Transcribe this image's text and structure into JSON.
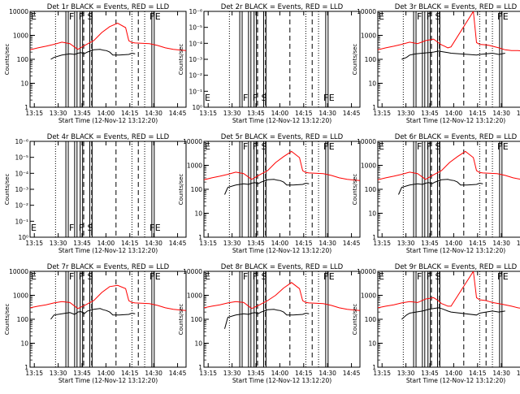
{
  "colors": {
    "events": "#000000",
    "lld": "#ff0000",
    "background": "#ffffff"
  },
  "xaxis": {
    "label": "Start Time (12-Nov-12 13:12:20)",
    "ticks": [
      "13:15",
      "13:30",
      "13:45",
      "14:00",
      "14:15",
      "14:30",
      "14:45"
    ],
    "minutes": [
      2.67,
      17.67,
      32.67,
      47.67,
      62.67,
      77.67,
      92.67
    ],
    "range_minutes": [
      0,
      98
    ]
  },
  "yaxis": {
    "label": "Counts/sec",
    "log_ticks": [
      "1",
      "10",
      "100",
      "1000",
      "10000"
    ],
    "empty_ticks": [
      "10⁻⁶",
      "10⁻⁵",
      "10⁻⁴",
      "10⁻³",
      "10⁻²",
      "10⁻¹",
      "10⁰"
    ]
  },
  "flags": {
    "events": [
      "F",
      "F",
      "S",
      "F",
      "E"
    ],
    "first": "E"
  },
  "chart_data": [
    {
      "type": "line",
      "title": "Det 1r BLACK = Events, RED = LLD",
      "empty": false,
      "xlabel": "Start Time (12-Nov-12 13:12:20)",
      "ylabel": "Counts/sec",
      "ylim": [
        1,
        10000
      ],
      "y_scale": "log",
      "series": [
        {
          "name": "Events",
          "color": "#000000",
          "x": [
            13,
            15,
            20,
            25,
            28,
            30,
            32,
            34,
            36,
            40,
            44,
            46,
            48,
            50,
            52,
            56,
            62,
            64,
            66
          ],
          "y": [
            100,
            120,
            150,
            170,
            160,
            180,
            190,
            170,
            200,
            250,
            260,
            240,
            230,
            200,
            150,
            150,
            160,
            180,
            170
          ]
        },
        {
          "name": "LLD",
          "color": "#ff0000",
          "x": [
            0,
            5,
            10,
            15,
            20,
            25,
            30,
            35,
            40,
            45,
            50,
            55,
            60,
            62,
            64,
            66,
            70,
            75,
            80,
            85,
            90,
            95,
            98
          ],
          "y": [
            250,
            300,
            350,
            420,
            520,
            450,
            260,
            400,
            600,
            1300,
            2300,
            3200,
            2100,
            600,
            500,
            480,
            470,
            450,
            380,
            300,
            260,
            240,
            230
          ]
        }
      ]
    },
    {
      "type": "line",
      "title": "Det 2r BLACK = Events, RED = LLD",
      "empty": true,
      "xlabel": "Start Time (12-Nov-12 13:12:20)",
      "ylabel": "Counts/sec",
      "series": []
    },
    {
      "type": "line",
      "title": "Det 3r BLACK = Events, RED = LLD",
      "empty": false,
      "xlabel": "Start Time (12-Nov-12 13:12:20)",
      "ylabel": "Counts/sec",
      "ylim": [
        1,
        10000
      ],
      "y_scale": "log",
      "series": [
        {
          "name": "Events",
          "color": "#000000",
          "x": [
            15,
            18,
            20,
            24,
            28,
            32,
            35,
            38,
            40,
            42,
            44,
            46,
            62,
            64,
            68,
            72,
            76,
            78,
            80
          ],
          "y": [
            100,
            120,
            150,
            170,
            180,
            190,
            200,
            220,
            210,
            200,
            190,
            180,
            150,
            160,
            170,
            180,
            160,
            170,
            180
          ]
        },
        {
          "name": "LLD",
          "color": "#ff0000",
          "x": [
            0,
            5,
            10,
            15,
            20,
            25,
            30,
            35,
            38,
            40,
            42,
            44,
            46,
            60,
            62,
            64,
            68,
            70,
            72,
            76,
            80,
            84,
            88,
            92,
            96,
            98
          ],
          "y": [
            250,
            300,
            350,
            420,
            520,
            450,
            600,
            700,
            500,
            400,
            350,
            300,
            330,
            10000,
            500,
            420,
            400,
            380,
            350,
            300,
            250,
            230,
            230,
            220,
            220,
            220
          ]
        }
      ]
    },
    {
      "type": "line",
      "title": "Det 4r BLACK = Events, RED = LLD",
      "empty": true,
      "xlabel": "Start Time (12-Nov-12 13:12:20)",
      "ylabel": "Counts/sec",
      "series": []
    },
    {
      "type": "line",
      "title": "Det 5r BLACK = Events, RED = LLD",
      "empty": false,
      "xlabel": "Start Time (12-Nov-12 13:12:20)",
      "ylabel": "Counts/sec",
      "ylim": [
        1,
        10000
      ],
      "y_scale": "log",
      "series": [
        {
          "name": "Events",
          "color": "#000000",
          "x": [
            13,
            15,
            20,
            25,
            28,
            30,
            32,
            34,
            36,
            40,
            44,
            46,
            48,
            50,
            52,
            56,
            62,
            64,
            66
          ],
          "y": [
            60,
            120,
            150,
            170,
            160,
            180,
            190,
            170,
            200,
            250,
            260,
            240,
            230,
            200,
            150,
            150,
            160,
            180,
            170
          ]
        },
        {
          "name": "LLD",
          "color": "#ff0000",
          "x": [
            0,
            5,
            10,
            15,
            20,
            25,
            30,
            35,
            40,
            45,
            50,
            55,
            60,
            62,
            64,
            66,
            70,
            75,
            80,
            85,
            90,
            95,
            98
          ],
          "y": [
            250,
            300,
            350,
            420,
            520,
            450,
            260,
            400,
            600,
            1300,
            2300,
            3800,
            2100,
            600,
            500,
            480,
            470,
            450,
            380,
            300,
            260,
            240,
            230
          ]
        }
      ]
    },
    {
      "type": "line",
      "title": "Det 6r BLACK = Events, RED = LLD",
      "empty": false,
      "xlabel": "Start Time (12-Nov-12 13:12:20)",
      "ylabel": "Counts/sec",
      "ylim": [
        1,
        10000
      ],
      "y_scale": "log",
      "series": [
        {
          "name": "Events",
          "color": "#000000",
          "x": [
            13,
            15,
            20,
            25,
            28,
            30,
            32,
            34,
            36,
            40,
            44,
            46,
            48,
            50,
            52,
            56,
            62,
            64,
            66
          ],
          "y": [
            60,
            120,
            150,
            170,
            160,
            180,
            190,
            170,
            200,
            250,
            260,
            240,
            230,
            200,
            150,
            150,
            160,
            180,
            170
          ]
        },
        {
          "name": "LLD",
          "color": "#ff0000",
          "x": [
            0,
            5,
            10,
            15,
            20,
            25,
            30,
            35,
            40,
            45,
            50,
            55,
            60,
            62,
            64,
            66,
            70,
            75,
            80,
            85,
            90,
            95,
            98
          ],
          "y": [
            250,
            300,
            350,
            420,
            520,
            450,
            260,
            400,
            600,
            1300,
            2300,
            3800,
            2100,
            600,
            500,
            480,
            470,
            450,
            380,
            300,
            260,
            240,
            230
          ]
        }
      ]
    },
    {
      "type": "line",
      "title": "Det 7r BLACK = Events, RED = LLD",
      "empty": false,
      "xlabel": "Start Time (12-Nov-12 13:12:20)",
      "ylabel": "Counts/sec",
      "ylim": [
        1,
        10000
      ],
      "y_scale": "log",
      "series": [
        {
          "name": "Events",
          "color": "#000000",
          "x": [
            13,
            15,
            20,
            25,
            28,
            30,
            32,
            34,
            36,
            40,
            44,
            46,
            48,
            50,
            52,
            56,
            62,
            64,
            66
          ],
          "y": [
            100,
            150,
            170,
            190,
            160,
            200,
            210,
            170,
            220,
            260,
            280,
            250,
            230,
            200,
            150,
            150,
            160,
            180,
            170
          ]
        },
        {
          "name": "LLD",
          "color": "#ff0000",
          "x": [
            0,
            5,
            10,
            15,
            20,
            25,
            30,
            35,
            40,
            45,
            50,
            55,
            60,
            62,
            64,
            66,
            70,
            75,
            80,
            85,
            90,
            95,
            98
          ],
          "y": [
            300,
            350,
            400,
            480,
            550,
            500,
            280,
            400,
            600,
            1300,
            2300,
            2600,
            1900,
            600,
            500,
            480,
            470,
            450,
            380,
            300,
            260,
            240,
            230
          ]
        }
      ]
    },
    {
      "type": "line",
      "title": "Det 8r BLACK = Events, RED = LLD",
      "empty": false,
      "xlabel": "Start Time (12-Nov-12 13:12:20)",
      "ylabel": "Counts/sec",
      "ylim": [
        1,
        10000
      ],
      "y_scale": "log",
      "series": [
        {
          "name": "Events",
          "color": "#000000",
          "x": [
            13,
            15,
            20,
            25,
            28,
            30,
            32,
            34,
            36,
            40,
            44,
            46,
            48,
            50,
            52,
            56,
            62,
            64,
            66
          ],
          "y": [
            40,
            120,
            150,
            170,
            160,
            180,
            190,
            170,
            200,
            250,
            260,
            240,
            230,
            200,
            150,
            150,
            160,
            180,
            170
          ]
        },
        {
          "name": "LLD",
          "color": "#ff0000",
          "x": [
            0,
            5,
            10,
            15,
            20,
            25,
            30,
            35,
            40,
            45,
            50,
            55,
            60,
            62,
            64,
            66,
            70,
            75,
            80,
            85,
            90,
            95,
            98
          ],
          "y": [
            300,
            350,
            400,
            480,
            550,
            500,
            280,
            400,
            600,
            1000,
            2000,
            3400,
            1900,
            600,
            500,
            480,
            470,
            450,
            380,
            300,
            260,
            240,
            230
          ]
        }
      ]
    },
    {
      "type": "line",
      "title": "Det 9r BLACK = Events, RED = LLD",
      "empty": false,
      "xlabel": "Start Time (12-Nov-12 13:12:20)",
      "ylabel": "Counts/sec",
      "ylim": [
        1,
        10000
      ],
      "y_scale": "log",
      "series": [
        {
          "name": "Events",
          "color": "#000000",
          "x": [
            15,
            18,
            20,
            24,
            28,
            32,
            35,
            38,
            40,
            42,
            44,
            46,
            62,
            64,
            68,
            72,
            76,
            78,
            80
          ],
          "y": [
            100,
            150,
            180,
            200,
            220,
            260,
            280,
            300,
            280,
            250,
            220,
            200,
            150,
            180,
            200,
            220,
            200,
            210,
            220
          ]
        },
        {
          "name": "LLD",
          "color": "#ff0000",
          "x": [
            0,
            5,
            10,
            15,
            20,
            25,
            30,
            35,
            38,
            40,
            42,
            44,
            46,
            60,
            62,
            64,
            68,
            70,
            72,
            76,
            80,
            84,
            88,
            92,
            96,
            98
          ],
          "y": [
            300,
            350,
            400,
            480,
            550,
            500,
            700,
            800,
            600,
            450,
            400,
            350,
            350,
            10000,
            800,
            650,
            600,
            550,
            500,
            450,
            400,
            350,
            300,
            280,
            260,
            250
          ]
        }
      ]
    }
  ]
}
